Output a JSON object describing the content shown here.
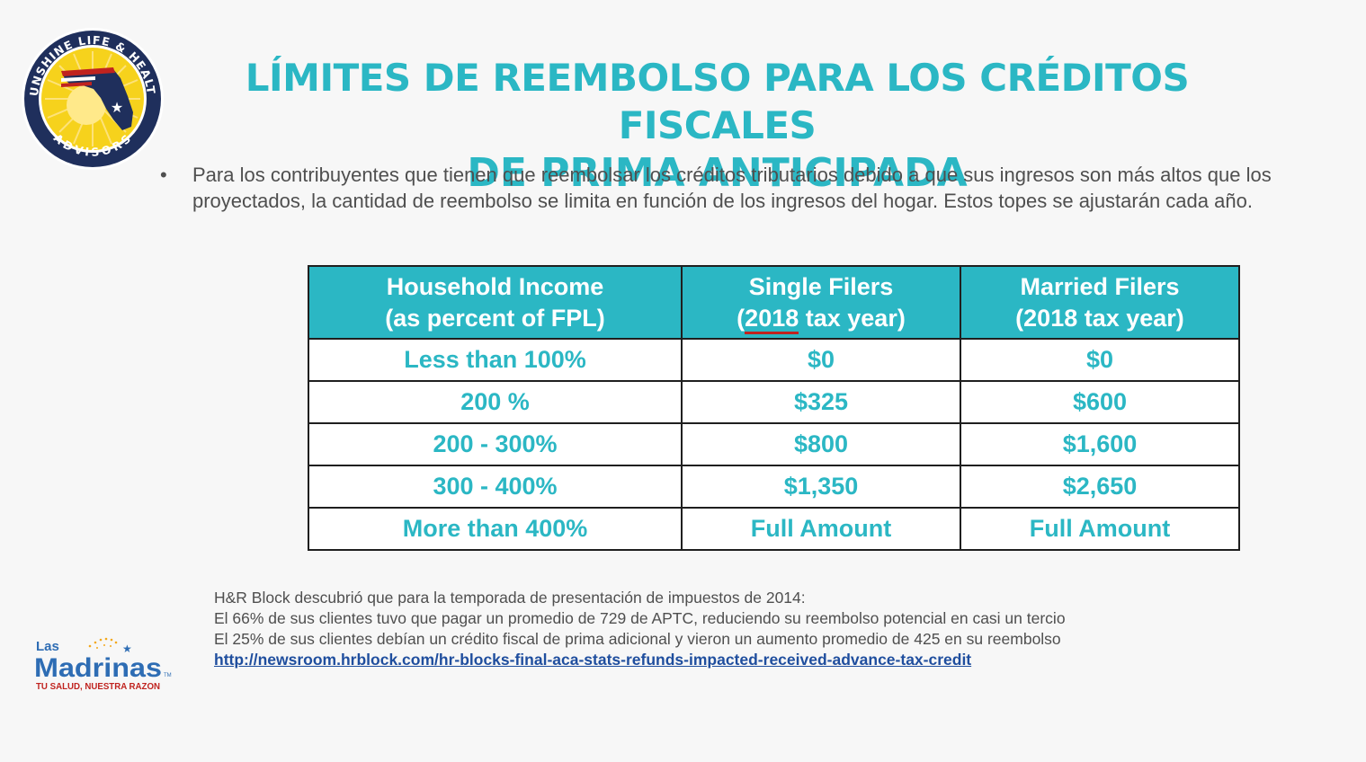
{
  "logo": {
    "ring_text": "SUNSHINE LIFE & HEALTH",
    "bottom_text": "ADVISORS"
  },
  "title": {
    "line1": "LÍMITES DE REEMBOLSO PARA LOS CRÉDITOS FISCALES",
    "line2": "DE PRIMA ANTICIPADA"
  },
  "bullet": {
    "symbol": "•",
    "text": "Para los contribuyentes que tienen que reembolsar los créditos tributarios debido a que sus ingresos son más altos que los proyectados, la cantidad de reembolso se limita en función de los ingresos del hogar. Estos topes se ajustarán cada año."
  },
  "table": {
    "headers": [
      {
        "line1": "Household Income",
        "line2": "(as percent of FPL)"
      },
      {
        "line1": "Single Filers",
        "pre": "(",
        "mark": "2018",
        "post": " tax year)"
      },
      {
        "line1": "Married Filers",
        "line2": "(2018 tax year)"
      }
    ],
    "rows": [
      [
        "Less than 100%",
        "$0",
        "$0"
      ],
      [
        "200 %",
        "$325",
        "$600"
      ],
      [
        "200 - 300%",
        "$800",
        "$1,600"
      ],
      [
        "300 - 400%",
        "$1,350",
        "$2,650"
      ],
      [
        "More than 400%",
        "Full Amount",
        "Full Amount"
      ]
    ]
  },
  "footer": {
    "line1": "H&R Block descubrió que para la temporada de presentación de impuestos de 2014:",
    "line2": "El 66% de sus clientes tuvo que pagar un promedio de 729 de APTC, reduciendo su reembolso potencial en casi un tercio",
    "line3": "El 25% de sus clientes debían un crédito fiscal de prima adicional y vieron un aumento promedio de 425 en su reembolso",
    "link": "http://newsroom.hrblock.com/hr-blocks-final-aca-stats-refunds-impacted-received-advance-tax-credit"
  },
  "madrinas": {
    "las": "Las",
    "name": "Madrinas",
    "tm": "TM",
    "tagline": "TU SALUD, NUESTRA RAZON"
  },
  "colors": {
    "accent": "#2bb7c4",
    "navy": "#1f2f5c",
    "red": "#c0231f",
    "sun": "#f6d21c",
    "text": "#4f4f4f",
    "link": "#1f4e9e"
  }
}
